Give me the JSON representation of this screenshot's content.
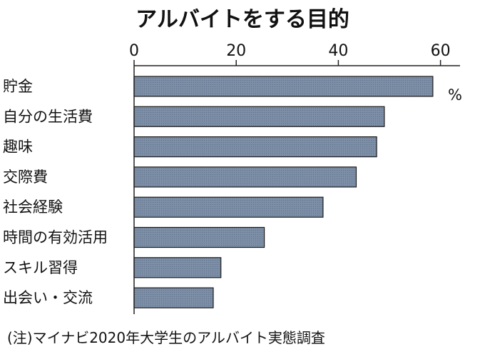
{
  "chart_data": {
    "type": "bar",
    "orientation": "horizontal",
    "title": "アルバイトをする目的",
    "unit": "%",
    "categories": [
      "貯金",
      "自分の生活費",
      "趣味",
      "交際費",
      "社会経験",
      "時間の有効活用",
      "スキル習得",
      "出会い・交流"
    ],
    "values": [
      58.5,
      49,
      47.5,
      43.5,
      37,
      25.5,
      17,
      15.5
    ],
    "xlim": [
      0,
      65
    ],
    "xticks": [
      "0",
      "20",
      "40",
      "60"
    ],
    "tick_values": [
      0,
      20,
      40,
      60
    ],
    "bar_color": "#7c8ea6",
    "note": "(注)マイナビ2020年大学生のアルバイト実態調査"
  }
}
